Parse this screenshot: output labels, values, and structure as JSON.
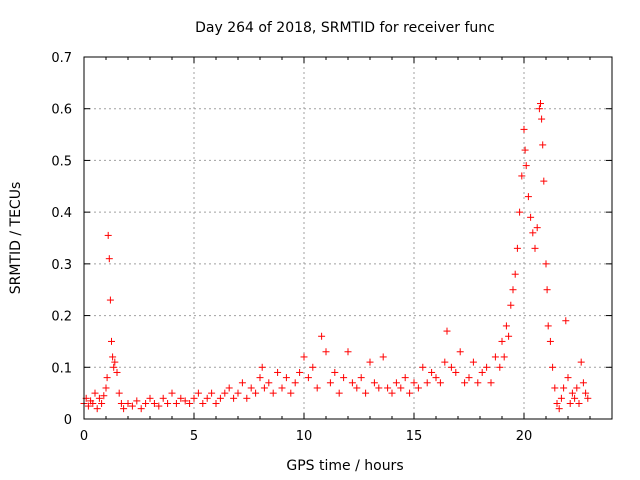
{
  "chart_data": {
    "type": "scatter",
    "title": "Day 264 of 2018, SRMTID for receiver func",
    "xlabel": "GPS time / hours",
    "ylabel": "SRMTID / TECUs",
    "xlim": [
      0,
      24
    ],
    "ylim": [
      0,
      0.7
    ],
    "xticks": [
      0,
      5,
      10,
      15,
      20
    ],
    "xtick_labels": [
      "0",
      "5",
      "10",
      "15",
      "20"
    ],
    "yticks": [
      0,
      0.1,
      0.2,
      0.3,
      0.4,
      0.5,
      0.6,
      0.7
    ],
    "ytick_labels": [
      "0",
      "0.1",
      "0.2",
      "0.3",
      "0.4",
      "0.5",
      "0.6",
      "0.7"
    ],
    "grid": true,
    "marker": "plus",
    "color": "#ff0000",
    "series": [
      {
        "name": "SRMTID",
        "points": [
          [
            0.0,
            0.03
          ],
          [
            0.1,
            0.04
          ],
          [
            0.2,
            0.025
          ],
          [
            0.3,
            0.035
          ],
          [
            0.4,
            0.03
          ],
          [
            0.5,
            0.05
          ],
          [
            0.6,
            0.02
          ],
          [
            0.7,
            0.04
          ],
          [
            0.8,
            0.03
          ],
          [
            0.9,
            0.045
          ],
          [
            1.0,
            0.06
          ],
          [
            1.05,
            0.08
          ],
          [
            1.1,
            0.355
          ],
          [
            1.15,
            0.31
          ],
          [
            1.2,
            0.23
          ],
          [
            1.25,
            0.15
          ],
          [
            1.3,
            0.12
          ],
          [
            1.35,
            0.1
          ],
          [
            1.4,
            0.11
          ],
          [
            1.5,
            0.09
          ],
          [
            1.6,
            0.05
          ],
          [
            1.7,
            0.03
          ],
          [
            1.8,
            0.02
          ],
          [
            2.0,
            0.03
          ],
          [
            2.2,
            0.025
          ],
          [
            2.4,
            0.035
          ],
          [
            2.6,
            0.02
          ],
          [
            2.8,
            0.03
          ],
          [
            3.0,
            0.04
          ],
          [
            3.2,
            0.03
          ],
          [
            3.4,
            0.025
          ],
          [
            3.6,
            0.04
          ],
          [
            3.8,
            0.03
          ],
          [
            4.0,
            0.05
          ],
          [
            4.2,
            0.03
          ],
          [
            4.4,
            0.04
          ],
          [
            4.6,
            0.035
          ],
          [
            4.8,
            0.03
          ],
          [
            5.0,
            0.04
          ],
          [
            5.2,
            0.05
          ],
          [
            5.4,
            0.03
          ],
          [
            5.6,
            0.04
          ],
          [
            5.8,
            0.05
          ],
          [
            6.0,
            0.03
          ],
          [
            6.2,
            0.04
          ],
          [
            6.4,
            0.05
          ],
          [
            6.6,
            0.06
          ],
          [
            6.8,
            0.04
          ],
          [
            7.0,
            0.05
          ],
          [
            7.2,
            0.07
          ],
          [
            7.4,
            0.04
          ],
          [
            7.6,
            0.06
          ],
          [
            7.8,
            0.05
          ],
          [
            8.0,
            0.08
          ],
          [
            8.1,
            0.1
          ],
          [
            8.2,
            0.06
          ],
          [
            8.4,
            0.07
          ],
          [
            8.6,
            0.05
          ],
          [
            8.8,
            0.09
          ],
          [
            9.0,
            0.06
          ],
          [
            9.2,
            0.08
          ],
          [
            9.4,
            0.05
          ],
          [
            9.6,
            0.07
          ],
          [
            9.8,
            0.09
          ],
          [
            10.0,
            0.12
          ],
          [
            10.2,
            0.08
          ],
          [
            10.4,
            0.1
          ],
          [
            10.6,
            0.06
          ],
          [
            10.8,
            0.16
          ],
          [
            11.0,
            0.13
          ],
          [
            11.2,
            0.07
          ],
          [
            11.4,
            0.09
          ],
          [
            11.6,
            0.05
          ],
          [
            11.8,
            0.08
          ],
          [
            12.0,
            0.13
          ],
          [
            12.2,
            0.07
          ],
          [
            12.4,
            0.06
          ],
          [
            12.6,
            0.08
          ],
          [
            12.8,
            0.05
          ],
          [
            13.0,
            0.11
          ],
          [
            13.2,
            0.07
          ],
          [
            13.4,
            0.06
          ],
          [
            13.6,
            0.12
          ],
          [
            13.8,
            0.06
          ],
          [
            14.0,
            0.05
          ],
          [
            14.2,
            0.07
          ],
          [
            14.4,
            0.06
          ],
          [
            14.6,
            0.08
          ],
          [
            14.8,
            0.05
          ],
          [
            15.0,
            0.07
          ],
          [
            15.2,
            0.06
          ],
          [
            15.4,
            0.1
          ],
          [
            15.6,
            0.07
          ],
          [
            15.8,
            0.09
          ],
          [
            16.0,
            0.08
          ],
          [
            16.2,
            0.07
          ],
          [
            16.4,
            0.11
          ],
          [
            16.5,
            0.17
          ],
          [
            16.7,
            0.1
          ],
          [
            16.9,
            0.09
          ],
          [
            17.1,
            0.13
          ],
          [
            17.3,
            0.07
          ],
          [
            17.5,
            0.08
          ],
          [
            17.7,
            0.11
          ],
          [
            17.9,
            0.07
          ],
          [
            18.1,
            0.09
          ],
          [
            18.3,
            0.1
          ],
          [
            18.5,
            0.07
          ],
          [
            18.7,
            0.12
          ],
          [
            18.9,
            0.1
          ],
          [
            19.0,
            0.15
          ],
          [
            19.1,
            0.12
          ],
          [
            19.2,
            0.18
          ],
          [
            19.3,
            0.16
          ],
          [
            19.4,
            0.22
          ],
          [
            19.5,
            0.25
          ],
          [
            19.6,
            0.28
          ],
          [
            19.7,
            0.33
          ],
          [
            19.8,
            0.4
          ],
          [
            19.9,
            0.47
          ],
          [
            20.0,
            0.56
          ],
          [
            20.05,
            0.52
          ],
          [
            20.1,
            0.49
          ],
          [
            20.2,
            0.43
          ],
          [
            20.3,
            0.39
          ],
          [
            20.4,
            0.36
          ],
          [
            20.5,
            0.33
          ],
          [
            20.6,
            0.37
          ],
          [
            20.7,
            0.6
          ],
          [
            20.75,
            0.61
          ],
          [
            20.8,
            0.58
          ],
          [
            20.85,
            0.53
          ],
          [
            20.9,
            0.46
          ],
          [
            21.0,
            0.3
          ],
          [
            21.05,
            0.25
          ],
          [
            21.1,
            0.18
          ],
          [
            21.2,
            0.15
          ],
          [
            21.3,
            0.1
          ],
          [
            21.4,
            0.06
          ],
          [
            21.5,
            0.03
          ],
          [
            21.6,
            0.02
          ],
          [
            21.7,
            0.04
          ],
          [
            21.8,
            0.06
          ],
          [
            21.9,
            0.19
          ],
          [
            22.0,
            0.08
          ],
          [
            22.1,
            0.03
          ],
          [
            22.2,
            0.05
          ],
          [
            22.3,
            0.04
          ],
          [
            22.4,
            0.06
          ],
          [
            22.5,
            0.03
          ],
          [
            22.6,
            0.11
          ],
          [
            22.7,
            0.07
          ],
          [
            22.8,
            0.05
          ],
          [
            22.9,
            0.04
          ]
        ]
      }
    ]
  }
}
